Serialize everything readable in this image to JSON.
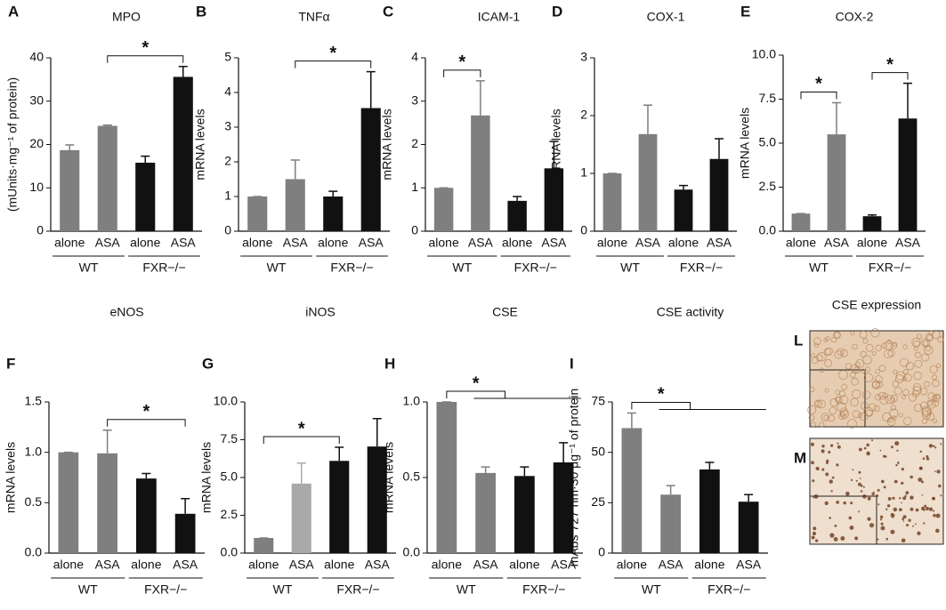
{
  "chart_data": [
    {
      "type": "bar",
      "letter": "A",
      "title": "MPO",
      "ylabel": "(mUnits·mg⁻¹ of protein)",
      "categories": [
        "alone",
        "ASA",
        "alone",
        "ASA"
      ],
      "groups": [
        "WT",
        "FXR−/−"
      ],
      "values": [
        18.7,
        24.3,
        15.8,
        35.6
      ],
      "errors": [
        1.2,
        0.2,
        1.5,
        2.4
      ],
      "colors": [
        "#7f7f7f",
        "#7f7f7f",
        "#111111",
        "#111111"
      ],
      "ylim": [
        0,
        40
      ],
      "yticks": [
        0,
        10,
        20,
        30,
        40
      ],
      "significance": [
        {
          "label": "*",
          "between": [
            [
              1
            ],
            [
              3
            ]
          ]
        }
      ]
    },
    {
      "type": "bar",
      "letter": "B",
      "title": "TNFα",
      "ylabel": "mRNA levels",
      "categories": [
        "alone",
        "ASA",
        "alone",
        "ASA"
      ],
      "groups": [
        "WT",
        "FXR−/−"
      ],
      "values": [
        1,
        1.5,
        1,
        3.55
      ],
      "errors": [
        0,
        0.55,
        0.15,
        1.05
      ],
      "colors": [
        "#7f7f7f",
        "#7f7f7f",
        "#111111",
        "#111111"
      ],
      "ylim": [
        0,
        5
      ],
      "yticks": [
        0,
        1,
        2,
        3,
        4,
        5
      ],
      "significance": [
        {
          "label": "*",
          "between": [
            [
              1
            ],
            [
              3
            ]
          ]
        }
      ]
    },
    {
      "type": "bar",
      "letter": "C",
      "title": "ICAM-1",
      "ylabel": "mRNA levels",
      "categories": [
        "alone",
        "ASA",
        "alone",
        "ASA"
      ],
      "groups": [
        "WT",
        "FXR−/−"
      ],
      "values": [
        1,
        2.67,
        0.7,
        1.45
      ],
      "errors": [
        0,
        0.8,
        0.1,
        0.62
      ],
      "colors": [
        "#7f7f7f",
        "#7f7f7f",
        "#111111",
        "#111111"
      ],
      "ylim": [
        0,
        4
      ],
      "yticks": [
        0,
        1,
        2,
        3,
        4
      ],
      "significance": [
        {
          "label": "*",
          "between": [
            [
              0
            ],
            [
              1
            ]
          ]
        }
      ]
    },
    {
      "type": "bar",
      "letter": "D",
      "title": "COX-1",
      "ylabel": "mRNA levels",
      "categories": [
        "alone",
        "ASA",
        "alone",
        "ASA"
      ],
      "groups": [
        "WT",
        "FXR−/−"
      ],
      "values": [
        1,
        1.68,
        0.72,
        1.25
      ],
      "errors": [
        0,
        0.5,
        0.07,
        0.35
      ],
      "colors": [
        "#7f7f7f",
        "#7f7f7f",
        "#111111",
        "#111111"
      ],
      "ylim": [
        0,
        3
      ],
      "yticks": [
        0,
        1,
        2,
        3
      ],
      "significance": []
    },
    {
      "type": "bar",
      "letter": "E",
      "title": "COX-2",
      "ylabel": "mRNA levels",
      "categories": [
        "alone",
        "ASA",
        "alone",
        "ASA"
      ],
      "groups": [
        "WT",
        "FXR−/−"
      ],
      "values": [
        1,
        5.5,
        0.85,
        6.4
      ],
      "errors": [
        0,
        1.8,
        0.07,
        2.0
      ],
      "colors": [
        "#7f7f7f",
        "#7f7f7f",
        "#111111",
        "#111111"
      ],
      "ylim": [
        0,
        10
      ],
      "yticks": [
        {
          "value": 0,
          "label": "0.0"
        },
        2.5,
        {
          "value": 5,
          "label": "5.0"
        },
        7.5,
        {
          "value": 10,
          "label": "10.0"
        }
      ],
      "significance": [
        {
          "label": "*",
          "between": [
            [
              0
            ],
            [
              1
            ]
          ]
        },
        {
          "label": "*",
          "between": [
            [
              2
            ],
            [
              3
            ]
          ]
        }
      ]
    },
    {
      "type": "bar",
      "letter": "F",
      "title": "eNOS",
      "ylabel": "mRNA levels",
      "categories": [
        "alone",
        "ASA",
        "alone",
        "ASA"
      ],
      "groups": [
        "WT",
        "FXR−/−"
      ],
      "values": [
        1,
        0.99,
        0.74,
        0.39
      ],
      "errors": [
        0,
        0.23,
        0.05,
        0.15
      ],
      "colors": [
        "#7f7f7f",
        "#7f7f7f",
        "#111111",
        "#111111"
      ],
      "ylim": [
        0,
        1.5
      ],
      "yticks": [
        {
          "value": 0,
          "label": "0.0"
        },
        0.5,
        {
          "value": 1,
          "label": "1.0"
        },
        1.5
      ],
      "significance": [
        {
          "label": "*",
          "between": [
            [
              1
            ],
            [
              3
            ]
          ]
        }
      ]
    },
    {
      "type": "bar",
      "letter": "G",
      "title": "iNOS",
      "ylabel": "mRNA levels",
      "categories": [
        "alone",
        "ASA",
        "alone",
        "ASA"
      ],
      "groups": [
        "WT",
        "FXR−/−"
      ],
      "values": [
        1,
        4.6,
        6.1,
        7.05
      ],
      "errors": [
        0,
        1.35,
        0.9,
        1.85
      ],
      "colors": [
        "#7f7f7f",
        "#a9a9a9",
        "#111111",
        "#111111"
      ],
      "ylim": [
        0,
        10
      ],
      "yticks": [
        {
          "value": 0,
          "label": "0.0"
        },
        2.5,
        {
          "value": 5,
          "label": "5.0"
        },
        7.5,
        {
          "value": 10,
          "label": "10.0"
        }
      ],
      "significance": [
        {
          "label": "*",
          "between": [
            [
              0
            ],
            [
              2
            ]
          ]
        }
      ]
    },
    {
      "type": "bar",
      "letter": "H",
      "title": "CSE",
      "ylabel": "mRNA levels",
      "categories": [
        "alone",
        "ASA",
        "alone",
        "ASA"
      ],
      "groups": [
        "WT",
        "FXR−/−"
      ],
      "values": [
        1,
        0.53,
        0.51,
        0.6
      ],
      "errors": [
        0,
        0.04,
        0.06,
        0.13
      ],
      "colors": [
        "#7f7f7f",
        "#7f7f7f",
        "#111111",
        "#111111"
      ],
      "ylim": [
        0,
        1
      ],
      "yticks": [
        {
          "value": 0,
          "label": "0.0"
        },
        0.5,
        {
          "value": 1,
          "label": "1.0"
        }
      ],
      "significance": [
        {
          "label": "*",
          "between": [
            [
              0
            ],
            [
              1,
              2,
              3
            ]
          ]
        }
      ]
    },
    {
      "type": "bar",
      "letter": "I",
      "title": "CSE activity",
      "ylabel": "mAbs 727 nm·30 μg⁻¹ of protein",
      "categories": [
        "alone",
        "ASA",
        "alone",
        "ASA"
      ],
      "groups": [
        "WT",
        "FXR−/−"
      ],
      "values": [
        62,
        29,
        41.5,
        25.5
      ],
      "errors": [
        7.5,
        4.5,
        3.5,
        3.5
      ],
      "colors": [
        "#7f7f7f",
        "#7f7f7f",
        "#111111",
        "#111111"
      ],
      "ylim": [
        0,
        75
      ],
      "yticks": [
        0,
        25,
        50,
        75
      ],
      "significance": [
        {
          "label": "*",
          "between": [
            [
              0
            ],
            [
              1,
              2,
              3
            ]
          ]
        }
      ]
    },
    {
      "type": "image",
      "title": "CSE expression",
      "panels": [
        "L",
        "M"
      ]
    }
  ]
}
